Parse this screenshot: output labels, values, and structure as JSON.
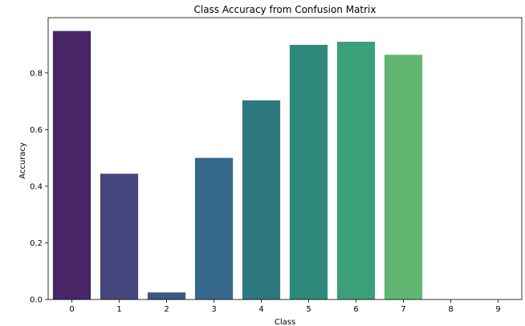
{
  "chart_data": {
    "type": "bar",
    "title": "Class Accuracy from Confusion Matrix",
    "xlabel": "Class",
    "ylabel": "Accuracy",
    "categories": [
      "0",
      "1",
      "2",
      "3",
      "4",
      "5",
      "6",
      "7",
      "8",
      "9"
    ],
    "values": [
      0.948,
      0.444,
      0.025,
      0.5,
      0.703,
      0.899,
      0.91,
      0.864,
      0.0,
      0.0
    ],
    "colors": [
      "#482668",
      "#45457d",
      "#3a5983",
      "#36698b",
      "#2e7980",
      "#2e897c",
      "#3b9f7a",
      "#61b671",
      "#8fd15d",
      "#c6e13e"
    ],
    "ylim": [
      0,
      0.995
    ],
    "yticks": [
      0.0,
      0.2,
      0.4,
      0.6,
      0.8
    ],
    "ytick_labels": [
      "0.0",
      "0.2",
      "0.4",
      "0.6",
      "0.8"
    ],
    "grid": false,
    "legend": "none"
  }
}
